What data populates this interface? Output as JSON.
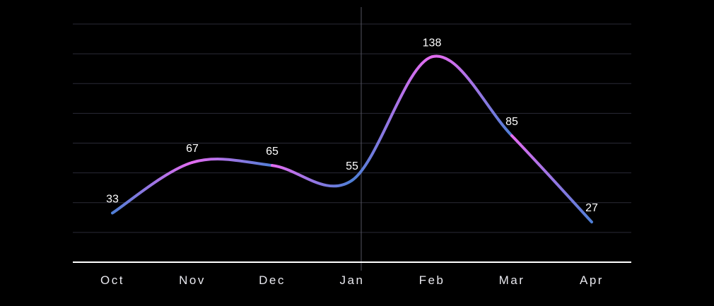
{
  "chart_data": {
    "type": "line",
    "categories": [
      "Oct",
      "Nov",
      "Dec",
      "Jan",
      "Feb",
      "Mar",
      "Apr"
    ],
    "series": [
      {
        "values": [
          33,
          67,
          65,
          55,
          138,
          85,
          27
        ]
      }
    ],
    "ylim": [
      0,
      160
    ],
    "grid": true,
    "curve": "smooth",
    "title": "",
    "xlabel": "",
    "ylabel": "",
    "colors": {
      "background": "#000000",
      "grid": "#2a2a36",
      "axis": "#ffffff",
      "cursor": "#55555f",
      "line_blue": "#4f7fd6",
      "line_magenta": "#e36cf0",
      "drop_line": "#ffffff",
      "text": "#ffffff"
    }
  }
}
